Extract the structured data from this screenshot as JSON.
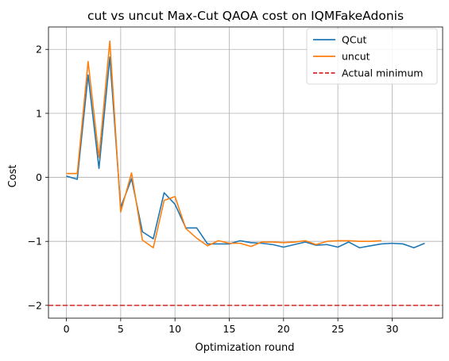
{
  "chart_data": {
    "type": "line",
    "title": "cut vs uncut Max-Cut QAOA cost on IQMFakeAdonis",
    "xlabel": "Optimization round",
    "ylabel": "Cost",
    "xlim": [
      -1.65,
      34.65
    ],
    "ylim": [
      -2.2,
      2.35
    ],
    "xticks": [
      0,
      5,
      10,
      15,
      20,
      25,
      30
    ],
    "yticks": [
      -2,
      -1,
      0,
      1,
      2
    ],
    "grid": true,
    "legend_position": "top-right",
    "series": [
      {
        "name": "QCut",
        "color": "#1f77b4",
        "x": [
          0,
          1,
          2,
          3,
          4,
          5,
          6,
          7,
          8,
          9,
          10,
          11,
          12,
          13,
          14,
          15,
          16,
          17,
          18,
          19,
          20,
          21,
          22,
          23,
          24,
          25,
          26,
          27,
          28,
          29,
          30,
          31,
          32,
          33
        ],
        "values": [
          0.02,
          -0.03,
          1.6,
          0.14,
          1.88,
          -0.47,
          -0.02,
          -0.85,
          -0.96,
          -0.24,
          -0.42,
          -0.79,
          -0.79,
          -1.04,
          -1.04,
          -1.04,
          -0.99,
          -1.02,
          -1.03,
          -1.05,
          -1.09,
          -1.05,
          -1.01,
          -1.06,
          -1.05,
          -1.09,
          -1.01,
          -1.1,
          -1.07,
          -1.04,
          -1.03,
          -1.04,
          -1.1,
          -1.03
        ]
      },
      {
        "name": "uncut",
        "color": "#ff7f0e",
        "x": [
          0,
          1,
          2,
          3,
          4,
          5,
          6,
          7,
          8,
          9,
          10,
          11,
          12,
          13,
          14,
          15,
          16,
          17,
          18,
          19,
          20,
          21,
          22,
          23,
          24,
          25,
          26,
          27,
          28,
          29
        ],
        "values": [
          0.06,
          0.06,
          1.81,
          0.31,
          2.13,
          -0.54,
          0.07,
          -0.98,
          -1.1,
          -0.36,
          -0.3,
          -0.8,
          -0.95,
          -1.07,
          -0.99,
          -1.03,
          -1.03,
          -1.08,
          -1.01,
          -1.01,
          -1.02,
          -1.01,
          -0.99,
          -1.05,
          -1.0,
          -0.99,
          -0.99,
          -1.0,
          -1.0,
          -0.99
        ]
      }
    ],
    "reference_lines": [
      {
        "name": "Actual minimum",
        "y": -2,
        "color": "#d62728",
        "style": "dashed"
      }
    ]
  }
}
